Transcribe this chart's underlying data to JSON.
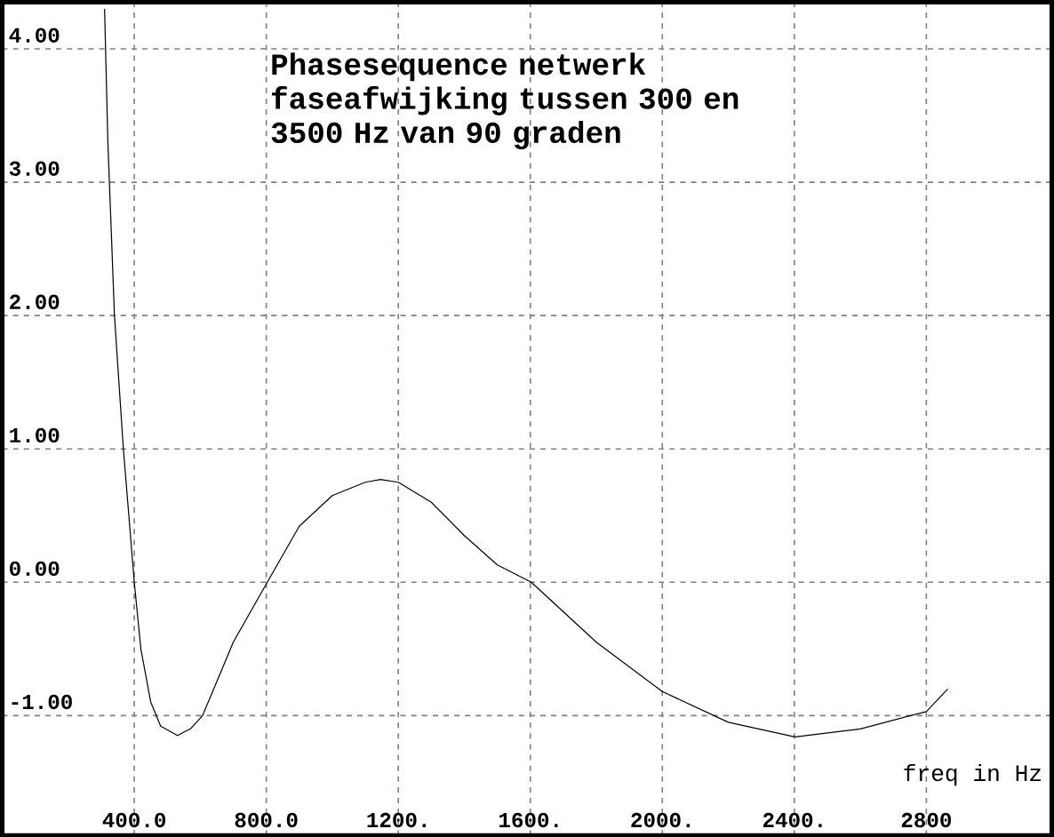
{
  "chart_data": {
    "type": "line",
    "title": "Phasesequence netwerk faseafwijking tussen 300 en 3500 Hz van 90 graden",
    "xlabel": "freq in Hz",
    "x": [
      310,
      320,
      340,
      367,
      400,
      420,
      450,
      480,
      531,
      570,
      607,
      700,
      803,
      900,
      1000,
      1100,
      1146,
      1200,
      1300,
      1400,
      1500,
      1603,
      1800,
      2000,
      2200,
      2402,
      2600,
      2800,
      2865
    ],
    "values": [
      4.3,
      3.3,
      2.0,
      1.0,
      0.0,
      -0.5,
      -0.9,
      -1.08,
      -1.15,
      -1.1,
      -1.0,
      -0.45,
      0.0,
      0.42,
      0.65,
      0.75,
      0.77,
      0.75,
      0.6,
      0.35,
      0.13,
      0.0,
      -0.45,
      -0.82,
      -1.05,
      -1.16,
      -1.1,
      -0.97,
      -0.8
    ],
    "color": "#000000",
    "xlim": [
      0,
      3180
    ],
    "ylim": [
      -1.9,
      4.35
    ],
    "xticks": [
      {
        "value": 400,
        "label": "400.0"
      },
      {
        "value": 800,
        "label": "800.0"
      },
      {
        "value": 1200,
        "label": "1200."
      },
      {
        "value": 1600,
        "label": "1600."
      },
      {
        "value": 2000,
        "label": "2000."
      },
      {
        "value": 2400,
        "label": "2400."
      },
      {
        "value": 2800,
        "label": "2800"
      }
    ],
    "yticks": [
      {
        "value": -1,
        "label": "-1.00"
      },
      {
        "value": 0,
        "label": "0.00"
      },
      {
        "value": 1,
        "label": "1.00"
      },
      {
        "value": 2,
        "label": "2.00"
      },
      {
        "value": 3,
        "label": "3.00"
      },
      {
        "value": 4,
        "label": "4.00"
      }
    ],
    "grid": true,
    "line_style": "solid"
  }
}
